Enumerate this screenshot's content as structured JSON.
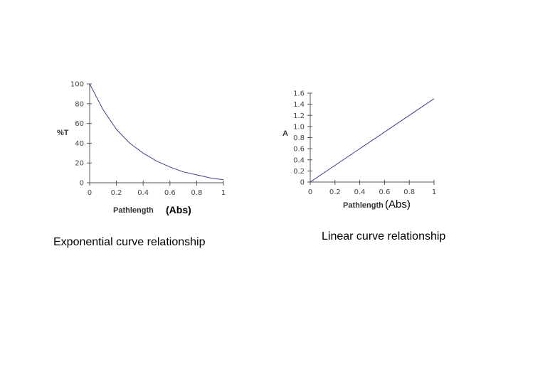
{
  "chart_data": [
    {
      "type": "line",
      "x": [
        0,
        0.1,
        0.2,
        0.3,
        0.4,
        0.5,
        0.6,
        0.7,
        0.8,
        0.9,
        1.0
      ],
      "series": [
        {
          "values": [
            100,
            74,
            54,
            40,
            30,
            22,
            16,
            11,
            8,
            5,
            3
          ]
        }
      ],
      "xlabel": "Pathlength",
      "ylabel": "%T",
      "xlim": [
        0,
        1
      ],
      "ylim": [
        0,
        100
      ],
      "xticks": [
        "0",
        "0.2",
        "0.4",
        "0.6",
        "0.8",
        "1"
      ],
      "yticks": [
        "0",
        "20",
        "40",
        "60",
        "80",
        "100"
      ],
      "grid": false,
      "line_color": "#3f3f8a",
      "unit_note": "(Abs)",
      "caption": "Exponential curve relationship"
    },
    {
      "type": "line",
      "x": [
        0,
        1
      ],
      "series": [
        {
          "values": [
            0,
            1.5
          ]
        }
      ],
      "xlabel": "Pathlength",
      "ylabel": "A",
      "xlim": [
        0,
        1
      ],
      "ylim": [
        0,
        1.6
      ],
      "xticks": [
        "0",
        "0.2",
        "0.4",
        "0.6",
        "0.8",
        "1"
      ],
      "yticks": [
        "0",
        "0.2",
        "0.4",
        "0.6",
        "0.8",
        "1.0",
        "1.2",
        "1.4",
        "1.6"
      ],
      "grid": false,
      "line_color": "#3f3f8a",
      "unit_note": "(Abs)",
      "caption": "Linear curve relationship"
    }
  ]
}
